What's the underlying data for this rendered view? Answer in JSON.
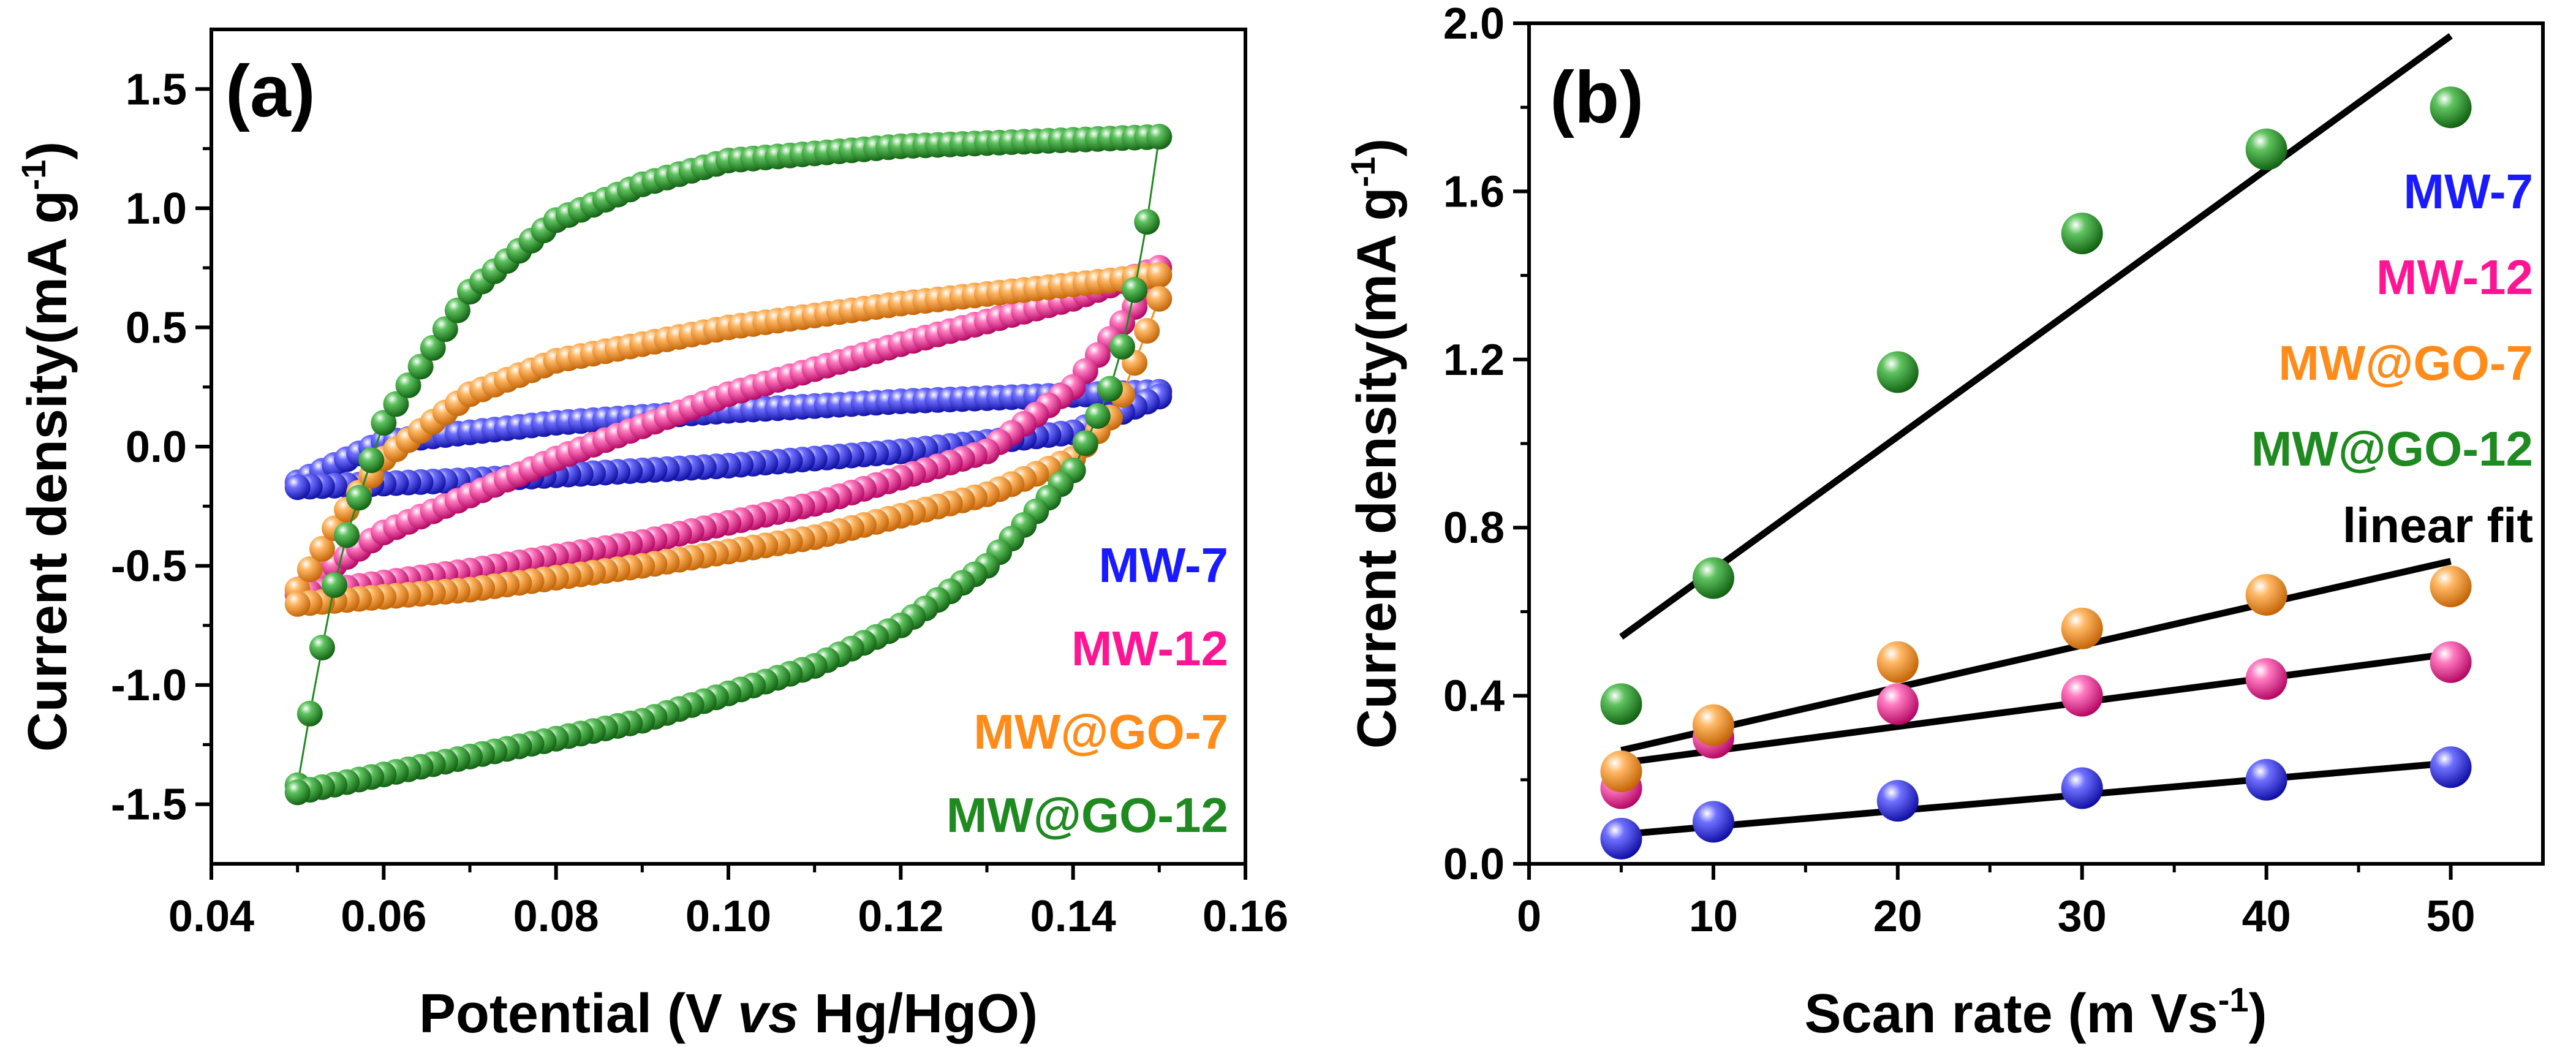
{
  "chart_data": [
    {
      "type": "scatter",
      "panel_label": "(a)",
      "title": "",
      "xlabel": {
        "prefix": "Potential (V ",
        "italic": "vs",
        "suffix": " Hg/HgO)"
      },
      "ylabel": {
        "text": "Current density(mA g",
        "sup": "-1",
        "tail": ")"
      },
      "xlim": [
        0.04,
        0.16
      ],
      "ylim": [
        -1.75,
        1.75
      ],
      "xticks": [
        0.04,
        0.06,
        0.08,
        0.1,
        0.12,
        0.14,
        0.16
      ],
      "xtick_labels": [
        "0.04",
        "0.06",
        "0.08",
        "0.10",
        "0.12",
        "0.14",
        "0.16"
      ],
      "yticks": [
        -1.5,
        -1.0,
        -0.5,
        0.0,
        0.5,
        1.0,
        1.5
      ],
      "ytick_labels": [
        "-1.5",
        "-1.0",
        "-0.5",
        "0.0",
        "0.5",
        "1.0",
        "1.5"
      ],
      "legend_position": "bottom-right",
      "series": [
        {
          "name": "MW-7",
          "color": "#1a1aff",
          "x_start": 0.05,
          "x_end": 0.15,
          "upper": [
            [
              0.05,
              -0.15
            ],
            [
              0.06,
              0.02
            ],
            [
              0.08,
              0.1
            ],
            [
              0.1,
              0.15
            ],
            [
              0.12,
              0.19
            ],
            [
              0.15,
              0.23
            ]
          ],
          "lower": [
            [
              0.05,
              -0.17
            ],
            [
              0.07,
              -0.14
            ],
            [
              0.1,
              -0.08
            ],
            [
              0.12,
              -0.02
            ],
            [
              0.14,
              0.06
            ],
            [
              0.15,
              0.21
            ]
          ]
        },
        {
          "name": "MW-12",
          "color": "#ff1493",
          "x_start": 0.05,
          "x_end": 0.15,
          "upper": [
            [
              0.05,
              -0.6
            ],
            [
              0.06,
              -0.36
            ],
            [
              0.08,
              -0.05
            ],
            [
              0.1,
              0.22
            ],
            [
              0.12,
              0.43
            ],
            [
              0.14,
              0.62
            ],
            [
              0.15,
              0.75
            ]
          ],
          "lower": [
            [
              0.05,
              -0.62
            ],
            [
              0.07,
              -0.52
            ],
            [
              0.09,
              -0.4
            ],
            [
              0.11,
              -0.24
            ],
            [
              0.13,
              -0.02
            ],
            [
              0.14,
              0.25
            ],
            [
              0.15,
              0.72
            ]
          ]
        },
        {
          "name": "MW@GO-7",
          "color": "#ff8c1a",
          "x_start": 0.05,
          "x_end": 0.15,
          "upper": [
            [
              0.05,
              -0.6
            ],
            [
              0.055,
              -0.3
            ],
            [
              0.06,
              -0.05
            ],
            [
              0.07,
              0.22
            ],
            [
              0.08,
              0.36
            ],
            [
              0.1,
              0.5
            ],
            [
              0.12,
              0.6
            ],
            [
              0.15,
              0.72
            ]
          ],
          "lower": [
            [
              0.05,
              -0.66
            ],
            [
              0.07,
              -0.6
            ],
            [
              0.09,
              -0.5
            ],
            [
              0.11,
              -0.38
            ],
            [
              0.13,
              -0.2
            ],
            [
              0.14,
              -0.05
            ],
            [
              0.145,
              0.15
            ],
            [
              0.15,
              0.62
            ]
          ]
        },
        {
          "name": "MW@GO-12",
          "color": "#1f8a1f",
          "x_start": 0.05,
          "x_end": 0.15,
          "upper": [
            [
              0.05,
              -1.42
            ],
            [
              0.052,
              -1.0
            ],
            [
              0.055,
              -0.45
            ],
            [
              0.06,
              0.1
            ],
            [
              0.07,
              0.65
            ],
            [
              0.08,
              0.95
            ],
            [
              0.09,
              1.1
            ],
            [
              0.1,
              1.2
            ],
            [
              0.12,
              1.26
            ],
            [
              0.15,
              1.3
            ]
          ],
          "lower": [
            [
              0.05,
              -1.45
            ],
            [
              0.07,
              -1.3
            ],
            [
              0.09,
              -1.15
            ],
            [
              0.11,
              -0.92
            ],
            [
              0.12,
              -0.75
            ],
            [
              0.13,
              -0.5
            ],
            [
              0.14,
              -0.1
            ],
            [
              0.145,
              0.3
            ],
            [
              0.148,
              0.8
            ],
            [
              0.15,
              1.3
            ]
          ]
        }
      ]
    },
    {
      "type": "scatter",
      "panel_label": "(b)",
      "title": "",
      "xlabel": {
        "text": "Scan rate (m Vs",
        "sup": "-1",
        "tail": ")"
      },
      "ylabel": {
        "text": "Current density(mA g",
        "sup": "-1",
        "tail": ")"
      },
      "xlim": [
        0,
        55
      ],
      "ylim": [
        0,
        2.0
      ],
      "xticks": [
        0,
        10,
        20,
        30,
        40,
        50
      ],
      "xtick_labels": [
        "0",
        "10",
        "20",
        "30",
        "40",
        "50"
      ],
      "yticks": [
        0.0,
        0.4,
        0.8,
        1.2,
        1.6,
        2.0
      ],
      "ytick_labels": [
        "0.0",
        "0.4",
        "0.8",
        "1.2",
        "1.6",
        "2.0"
      ],
      "legend_position": "right",
      "x": [
        5,
        10,
        20,
        30,
        40,
        50
      ],
      "series": [
        {
          "name": "MW-7",
          "color": "#1a1aff",
          "values": [
            0.06,
            0.1,
            0.15,
            0.18,
            0.2,
            0.23
          ],
          "fit": [
            0.07,
            0.24
          ]
        },
        {
          "name": "MW-12",
          "color": "#ff1493",
          "values": [
            0.18,
            0.3,
            0.38,
            0.4,
            0.44,
            0.48
          ],
          "fit": [
            0.24,
            0.5
          ]
        },
        {
          "name": "MW@GO-7",
          "color": "#ff8c1a",
          "values": [
            0.22,
            0.33,
            0.48,
            0.56,
            0.64,
            0.66
          ],
          "fit": [
            0.27,
            0.72
          ]
        },
        {
          "name": "MW@GO-12",
          "color": "#1f8a1f",
          "values": [
            0.38,
            0.68,
            1.17,
            1.5,
            1.7,
            1.8
          ],
          "fit": [
            0.54,
            1.97
          ]
        }
      ],
      "fit_legend": {
        "name": "linear fit",
        "color": "#000000"
      }
    }
  ]
}
